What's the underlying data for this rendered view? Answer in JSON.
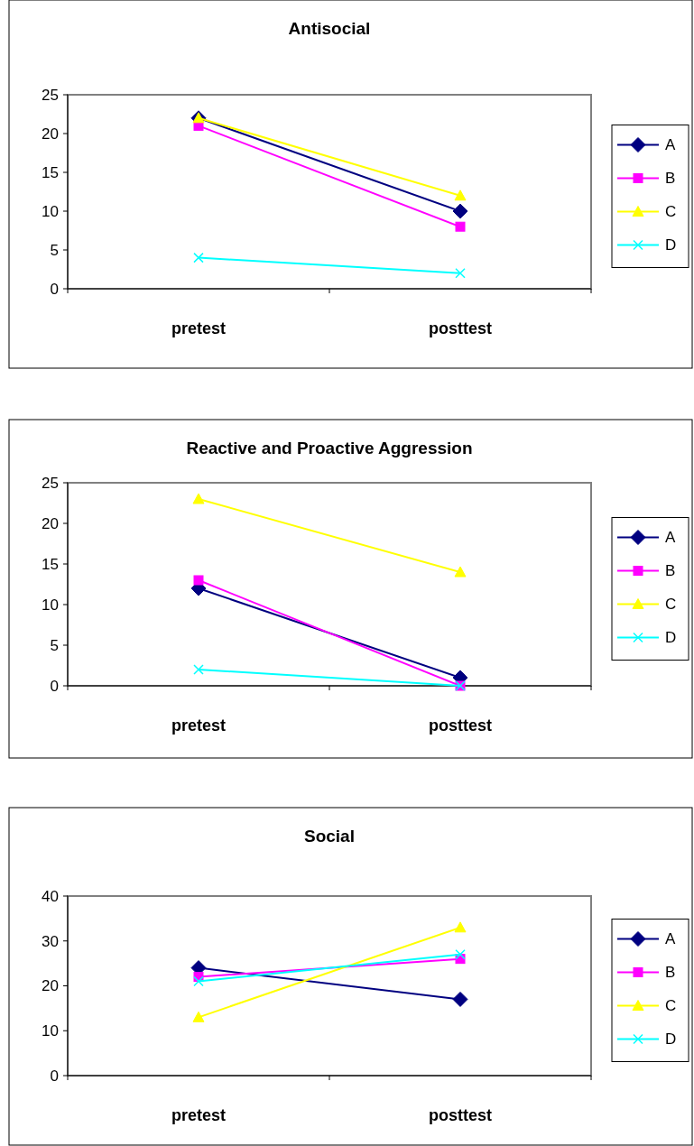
{
  "chart_data": [
    {
      "type": "line",
      "title": "Antisocial",
      "categories": [
        "pretest",
        "posttest"
      ],
      "ylim": [
        0,
        25
      ],
      "yticks": [
        0,
        5,
        10,
        15,
        20,
        25
      ],
      "grid": false,
      "legend": "right",
      "series": [
        {
          "name": "A",
          "color": "#000080",
          "marker": "diamond",
          "values": [
            22,
            10
          ]
        },
        {
          "name": "B",
          "color": "#ff00ff",
          "marker": "square",
          "values": [
            21,
            8
          ]
        },
        {
          "name": "C",
          "color": "#ffff00",
          "marker": "triangle",
          "values": [
            22,
            12
          ]
        },
        {
          "name": "D",
          "color": "#00ffff",
          "marker": "cross",
          "values": [
            4,
            2
          ]
        }
      ]
    },
    {
      "type": "line",
      "title": "Reactive and Proactive Aggression",
      "categories": [
        "pretest",
        "posttest"
      ],
      "ylim": [
        0,
        25
      ],
      "yticks": [
        0,
        5,
        10,
        15,
        20,
        25
      ],
      "grid": false,
      "legend": "right",
      "series": [
        {
          "name": "A",
          "color": "#000080",
          "marker": "diamond",
          "values": [
            12,
            1
          ]
        },
        {
          "name": "B",
          "color": "#ff00ff",
          "marker": "square",
          "values": [
            13,
            0
          ]
        },
        {
          "name": "C",
          "color": "#ffff00",
          "marker": "triangle",
          "values": [
            23,
            14
          ]
        },
        {
          "name": "D",
          "color": "#00ffff",
          "marker": "cross",
          "values": [
            2,
            0
          ]
        }
      ]
    },
    {
      "type": "line",
      "title": "Social",
      "categories": [
        "pretest",
        "posttest"
      ],
      "ylim": [
        0,
        40
      ],
      "yticks": [
        0,
        10,
        20,
        30,
        40
      ],
      "grid": false,
      "legend": "right",
      "series": [
        {
          "name": "A",
          "color": "#000080",
          "marker": "diamond",
          "values": [
            24,
            17
          ]
        },
        {
          "name": "B",
          "color": "#ff00ff",
          "marker": "square",
          "values": [
            22,
            26
          ]
        },
        {
          "name": "C",
          "color": "#ffff00",
          "marker": "triangle",
          "values": [
            13,
            33
          ]
        },
        {
          "name": "D",
          "color": "#00ffff",
          "marker": "cross",
          "values": [
            21,
            27
          ]
        }
      ]
    }
  ]
}
